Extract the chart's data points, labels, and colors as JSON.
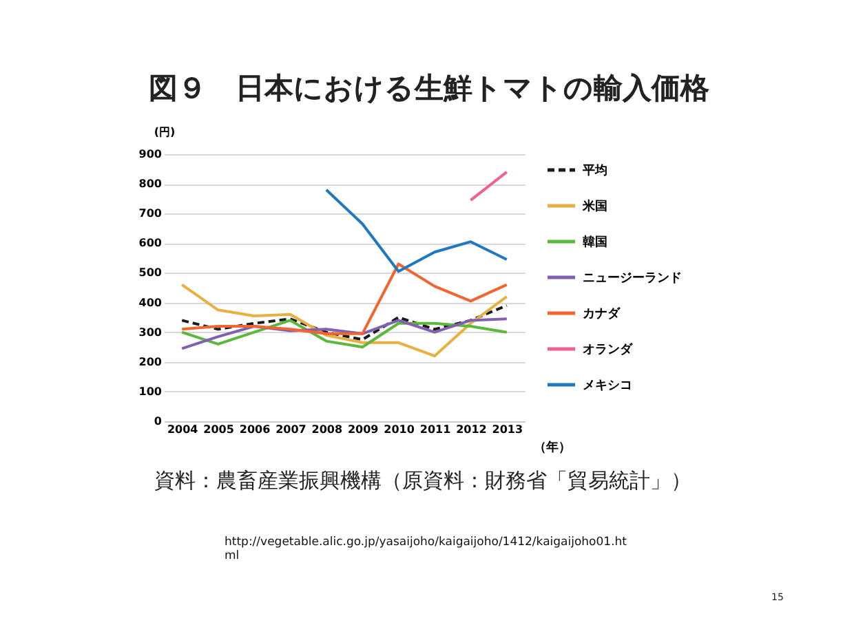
{
  "chart_data": {
    "type": "line",
    "title": "図９　日本における生鮮トマトの輸入価格",
    "ylabel": "(円)",
    "xlabel": "（年）",
    "categories": [
      "2004",
      "2005",
      "2006",
      "2007",
      "2008",
      "2009",
      "2010",
      "2011",
      "2012",
      "2013"
    ],
    "series": [
      {
        "name": "平均",
        "color": "#1a1a1a",
        "line_style": "dashed",
        "values": [
          340,
          310,
          330,
          345,
          300,
          275,
          350,
          310,
          340,
          390
        ]
      },
      {
        "name": "米国",
        "color": "#e8b040",
        "values": [
          460,
          375,
          355,
          360,
          290,
          265,
          265,
          220,
          330,
          420
        ]
      },
      {
        "name": "韓国",
        "color": "#5cb83c",
        "values": [
          300,
          260,
          300,
          340,
          270,
          250,
          330,
          330,
          320,
          300
        ]
      },
      {
        "name": "ニュージーランド",
        "color": "#8060b0",
        "values": [
          245,
          285,
          320,
          305,
          310,
          295,
          340,
          300,
          340,
          345
        ]
      },
      {
        "name": "カナダ",
        "color": "#f26430",
        "values": [
          310,
          320,
          320,
          310,
          295,
          295,
          530,
          455,
          405,
          460
        ]
      },
      {
        "name": "オランダ",
        "color": "#f06090",
        "values": [
          null,
          null,
          null,
          null,
          null,
          null,
          null,
          null,
          745,
          840
        ]
      },
      {
        "name": "メキシコ",
        "color": "#1f78c0",
        "values": [
          null,
          null,
          null,
          null,
          780,
          665,
          505,
          570,
          605,
          545
        ]
      }
    ],
    "ylim": [
      0,
      900
    ],
    "yticks": [
      0,
      100,
      200,
      300,
      400,
      500,
      600,
      700,
      800,
      900
    ],
    "grid": "y",
    "legend": "right",
    "line_style": "solid",
    "marker": "none",
    "annotations": [
      "資料：農畜産業振興機構（原資料：財務省「貿易統計」）",
      "http://vegetable.alic.go.jp/yasaijoho/kaigaijoho/1412/kaigaijoho01.html",
      "15"
    ]
  }
}
